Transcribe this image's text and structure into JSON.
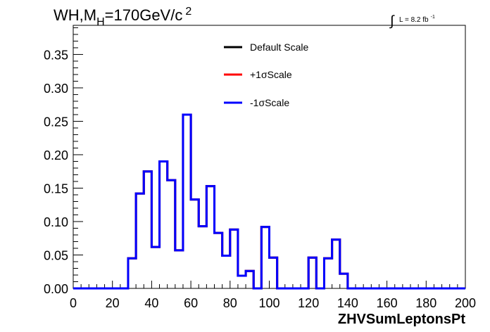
{
  "chart_data": {
    "type": "line",
    "title_parts": {
      "main": "WH,M",
      "sub": "H",
      "rest": "=170GeV/c",
      "sup": "2"
    },
    "lumi": {
      "integral": "∫",
      "text": "L = 8.2 fb",
      "sup": "-1"
    },
    "xlabel": "ZHVSumLeptonsPt",
    "ylabel": "",
    "xlim": [
      0,
      200
    ],
    "ylim": [
      0,
      0.3936
    ],
    "xticks": [
      "0",
      "20",
      "40",
      "60",
      "80",
      "100",
      "120",
      "140",
      "160",
      "180",
      "200"
    ],
    "yticks": [
      "0.00",
      "0.05",
      "0.10",
      "0.15",
      "0.20",
      "0.25",
      "0.30",
      "0.35"
    ],
    "grid": false,
    "legend_position": "top-center",
    "bin_edges": [
      0,
      4,
      8,
      12,
      16,
      20,
      24,
      28,
      32,
      36,
      40,
      44,
      48,
      52,
      56,
      60,
      64,
      68,
      72,
      76,
      80,
      84,
      88,
      92,
      96,
      100,
      104,
      108,
      112,
      116,
      120,
      124,
      128,
      132,
      136,
      140,
      144,
      148,
      152,
      156,
      160,
      164,
      168,
      172,
      176,
      180,
      184,
      188,
      192,
      196,
      200
    ],
    "series": [
      {
        "name": "Default Scale",
        "color": "#000000",
        "values": [
          0,
          0,
          0,
          0,
          0,
          0,
          0,
          0.045,
          0.142,
          0.175,
          0.062,
          0.19,
          0.162,
          0.057,
          0.26,
          0.133,
          0.093,
          0.153,
          0.083,
          0.049,
          0.088,
          0.019,
          0.026,
          0,
          0.092,
          0.046,
          0,
          0,
          0,
          0,
          0.046,
          0,
          0.045,
          0.073,
          0.022,
          0,
          0,
          0,
          0,
          0,
          0,
          0,
          0,
          0,
          0,
          0,
          0,
          0,
          0,
          0
        ]
      },
      {
        "name": "+1σScale",
        "color": "#ff0000",
        "values": [
          0,
          0,
          0,
          0,
          0,
          0,
          0,
          0.045,
          0.142,
          0.175,
          0.062,
          0.19,
          0.162,
          0.057,
          0.26,
          0.133,
          0.093,
          0.153,
          0.083,
          0.049,
          0.088,
          0.019,
          0.026,
          0,
          0.092,
          0.046,
          0,
          0,
          0,
          0,
          0.046,
          0,
          0.045,
          0.073,
          0.022,
          0,
          0,
          0,
          0,
          0,
          0,
          0,
          0,
          0,
          0,
          0,
          0,
          0,
          0,
          0
        ]
      },
      {
        "name": "-1σScale",
        "color": "#0000ff",
        "values": [
          0,
          0,
          0,
          0,
          0,
          0,
          0,
          0.045,
          0.142,
          0.175,
          0.062,
          0.19,
          0.162,
          0.057,
          0.26,
          0.133,
          0.093,
          0.153,
          0.083,
          0.049,
          0.088,
          0.019,
          0.026,
          0,
          0.092,
          0.046,
          0,
          0,
          0,
          0,
          0.046,
          0,
          0.045,
          0.073,
          0.022,
          0,
          0,
          0,
          0,
          0,
          0,
          0,
          0,
          0,
          0,
          0,
          0,
          0,
          0,
          0
        ]
      }
    ]
  }
}
